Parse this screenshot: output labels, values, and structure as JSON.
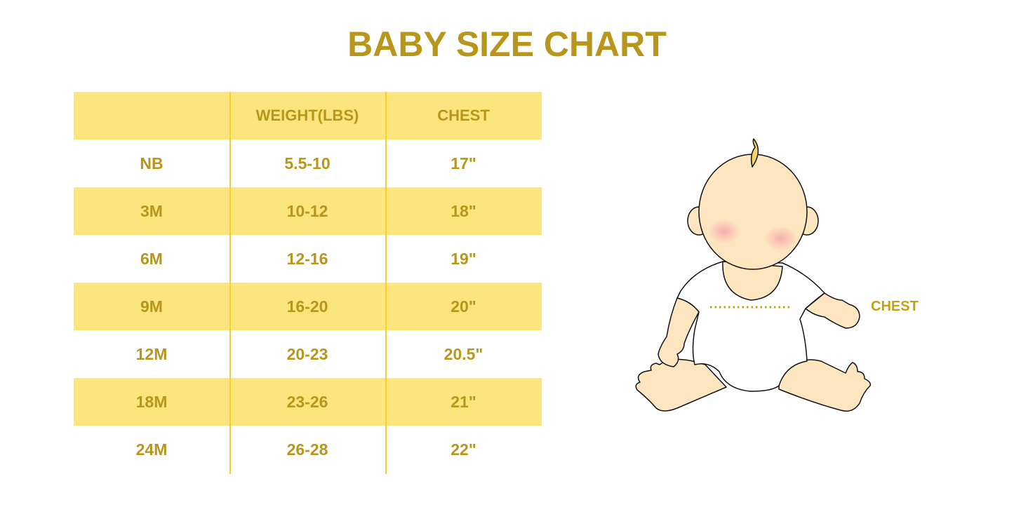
{
  "title": "BABY SIZE CHART",
  "table": {
    "headers": [
      "",
      "WEIGHT(LBS)",
      "CHEST"
    ],
    "rows": [
      [
        "NB",
        "5.5-10",
        "17\""
      ],
      [
        "3M",
        "10-12",
        "18\""
      ],
      [
        "6M",
        "12-16",
        "19\""
      ],
      [
        "9M",
        "16-20",
        "20\""
      ],
      [
        "12M",
        "20-23",
        "20.5\""
      ],
      [
        "18M",
        "23-26",
        "21\""
      ],
      [
        "24M",
        "26-28",
        "22\""
      ]
    ]
  },
  "illustration": {
    "chest_label": "CHEST"
  },
  "colors": {
    "text": "#b8961c",
    "row_shade": "#fbe57c",
    "divider": "#f5cf2a",
    "skin": "#fde6bf"
  }
}
